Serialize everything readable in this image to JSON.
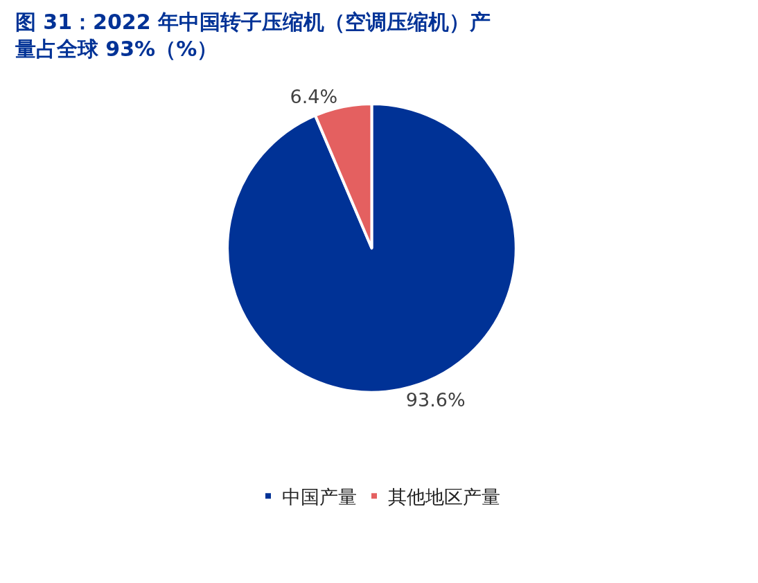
{
  "chart_data": {
    "type": "pie",
    "title": "图 31：2022 年中国转子压缩机（空调压缩机）产量占全球 93%（%）",
    "categories": [
      "中国产量",
      "其他地区产量"
    ],
    "values": [
      93.6,
      6.4
    ],
    "colors": [
      "#003296",
      "#e46060"
    ],
    "value_labels": [
      "93.6%",
      "6.4%"
    ],
    "legend": "bottom"
  }
}
